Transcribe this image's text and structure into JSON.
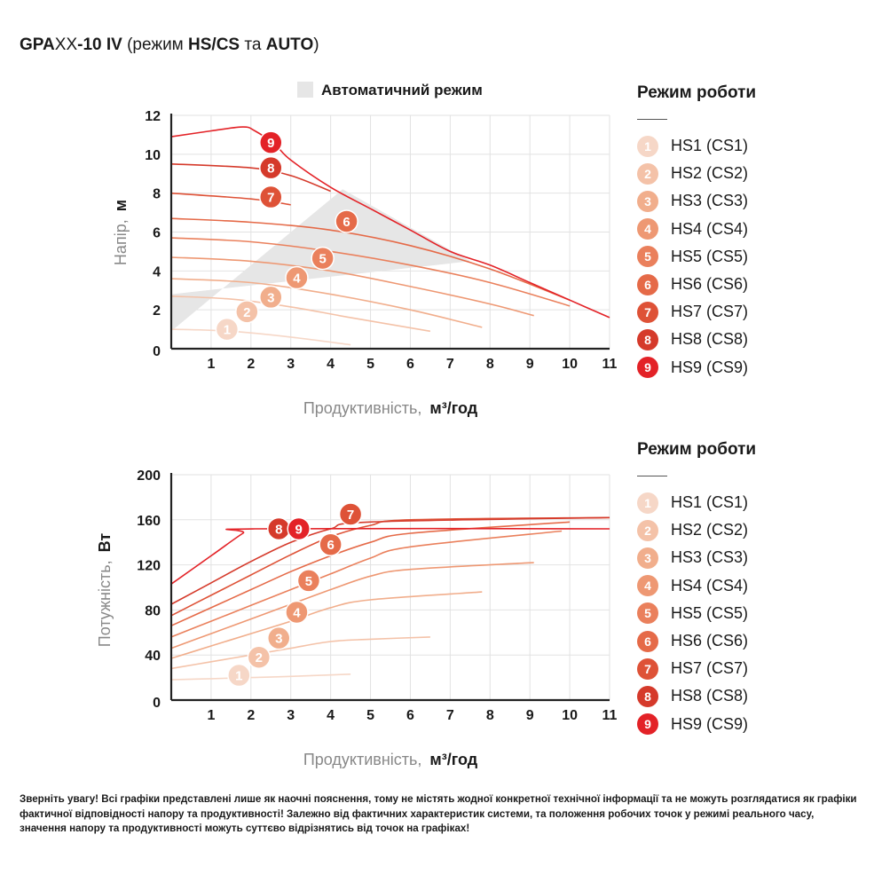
{
  "title": {
    "part1": "GPA",
    "part2": "XX",
    "part3": "-10 IV",
    "part4": " (режим ",
    "part5": "HS/CS",
    "part6": " та ",
    "part7": "AUTO",
    "part8": ")"
  },
  "colors": {
    "levels": [
      "#f6d7c7",
      "#f4c2a8",
      "#f1ae8c",
      "#ee9873",
      "#ea805c",
      "#e56a48",
      "#de5237",
      "#d53a2b",
      "#e32227"
    ],
    "auto_zone": "#e6e6e6",
    "grid": "#e2e2e2",
    "axis": "#222222"
  },
  "legends": [
    {
      "title": "Режим роботи",
      "items": [
        "HS1 (CS1)",
        "HS2 (CS2)",
        "HS3 (CS3)",
        "HS4 (CS4)",
        "HS5 (CS5)",
        "HS6 (CS6)",
        "HS7 (CS7)",
        "HS8 (CS8)",
        "HS9 (CS9)"
      ]
    },
    {
      "title": "Режим роботи",
      "items": [
        "HS1 (CS1)",
        "HS2 (CS2)",
        "HS3 (CS3)",
        "HS4 (CS4)",
        "HS5 (CS5)",
        "HS6 (CS6)",
        "HS7 (CS7)",
        "HS8 (CS8)",
        "HS9 (CS9)"
      ]
    }
  ],
  "chart_data": [
    {
      "type": "line",
      "title": "",
      "xlabel": "Продуктивність,",
      "xlabel_unit": "м³/год",
      "ylabel": "Напір,",
      "ylabel_unit": "м",
      "xlim": [
        0,
        11
      ],
      "ylim": [
        0,
        12
      ],
      "xticks": [
        "1",
        "2",
        "3",
        "4",
        "5",
        "6",
        "7",
        "8",
        "9",
        "10",
        "11"
      ],
      "yticks": [
        "0",
        "2",
        "4",
        "6",
        "8",
        "10",
        "12"
      ],
      "grid": true,
      "auto_zone_label": "Автоматичний режим",
      "auto_zone": [
        [
          0,
          0.9
        ],
        [
          4.3,
          8.2
        ],
        [
          7.5,
          4.5
        ],
        [
          0,
          2.8
        ]
      ],
      "series": [
        {
          "marker": "1",
          "points": [
            [
              0,
              1.0
            ],
            [
              1.5,
              0.9
            ],
            [
              3,
              0.6
            ],
            [
              4.5,
              0.2
            ]
          ],
          "label_at": [
            1.4,
            1.0
          ]
        },
        {
          "marker": "2",
          "points": [
            [
              0,
              2.7
            ],
            [
              1.5,
              2.55
            ],
            [
              3,
              2.15
            ],
            [
              4.5,
              1.6
            ],
            [
              6.5,
              0.9
            ]
          ],
          "label_at": [
            1.9,
            1.9
          ]
        },
        {
          "marker": "3",
          "points": [
            [
              0,
              3.6
            ],
            [
              2,
              3.4
            ],
            [
              4,
              2.8
            ],
            [
              6,
              2.0
            ],
            [
              7.8,
              1.1
            ]
          ],
          "label_at": [
            2.5,
            2.65
          ]
        },
        {
          "marker": "4",
          "points": [
            [
              0,
              4.7
            ],
            [
              2,
              4.5
            ],
            [
              4,
              4.0
            ],
            [
              6,
              3.2
            ],
            [
              8,
              2.3
            ],
            [
              9.1,
              1.7
            ]
          ],
          "label_at": [
            3.15,
            3.65
          ]
        },
        {
          "marker": "5",
          "points": [
            [
              0,
              5.7
            ],
            [
              2,
              5.5
            ],
            [
              4,
              5.0
            ],
            [
              6,
              4.3
            ],
            [
              8,
              3.4
            ],
            [
              10,
              2.2
            ]
          ],
          "label_at": [
            3.8,
            4.65
          ]
        },
        {
          "marker": "6",
          "points": [
            [
              0,
              6.7
            ],
            [
              2,
              6.5
            ],
            [
              4,
              6.1
            ],
            [
              6,
              5.3
            ],
            [
              8,
              4.1
            ],
            [
              10,
              2.5
            ]
          ],
          "label_at": [
            4.4,
            6.55
          ]
        },
        {
          "marker": "7",
          "points": [
            [
              0,
              8.0
            ],
            [
              2,
              7.7
            ],
            [
              3,
              7.4
            ]
          ],
          "label_at": [
            2.5,
            7.8
          ]
        },
        {
          "marker": "8",
          "points": [
            [
              0,
              9.5
            ],
            [
              2,
              9.3
            ],
            [
              3,
              8.9
            ],
            [
              4,
              8.1
            ]
          ],
          "label_at": [
            2.5,
            9.3
          ]
        },
        {
          "marker": "9",
          "points": [
            [
              0,
              10.9
            ],
            [
              1,
              11.2
            ],
            [
              1.8,
              11.4
            ],
            [
              2.1,
              11.2
            ],
            [
              2.6,
              10.5
            ],
            [
              3,
              9.7
            ],
            [
              4,
              8.3
            ],
            [
              5,
              7.2
            ],
            [
              6,
              6.1
            ],
            [
              7,
              5.0
            ],
            [
              8,
              4.3
            ],
            [
              9,
              3.4
            ],
            [
              10,
              2.5
            ],
            [
              11,
              1.6
            ]
          ],
          "label_at": [
            2.5,
            10.6
          ]
        }
      ]
    },
    {
      "type": "line",
      "title": "",
      "xlabel": "Продуктивність,",
      "xlabel_unit": "м³/год",
      "ylabel": "Потужність,",
      "ylabel_unit": "Вт",
      "xlim": [
        0,
        11
      ],
      "ylim": [
        0,
        200
      ],
      "xticks": [
        "1",
        "2",
        "3",
        "4",
        "5",
        "6",
        "7",
        "8",
        "9",
        "10",
        "11"
      ],
      "yticks": [
        "0",
        "40",
        "80",
        "120",
        "160",
        "200"
      ],
      "grid": true,
      "series": [
        {
          "marker": "1",
          "points": [
            [
              0,
              18
            ],
            [
              1,
              19
            ],
            [
              2,
              20
            ],
            [
              3,
              21
            ],
            [
              4.5,
              23
            ]
          ],
          "label_at": [
            1.7,
            22
          ]
        },
        {
          "marker": "2",
          "points": [
            [
              0,
              28
            ],
            [
              1,
              34
            ],
            [
              2,
              40
            ],
            [
              3,
              46
            ],
            [
              4,
              52
            ],
            [
              5,
              54
            ],
            [
              6.5,
              56
            ]
          ],
          "label_at": [
            2.2,
            38
          ]
        },
        {
          "marker": "3",
          "points": [
            [
              0,
              37
            ],
            [
              1,
              48
            ],
            [
              2,
              59
            ],
            [
              3,
              70
            ],
            [
              4,
              82
            ],
            [
              5,
              89
            ],
            [
              7.8,
              96
            ]
          ],
          "label_at": [
            2.7,
            55
          ]
        },
        {
          "marker": "4",
          "points": [
            [
              0,
              46
            ],
            [
              1,
              59
            ],
            [
              2,
              72
            ],
            [
              3,
              85
            ],
            [
              4,
              98
            ],
            [
              5,
              110
            ],
            [
              6,
              116
            ],
            [
              9.1,
              122
            ]
          ],
          "label_at": [
            3.15,
            78
          ]
        },
        {
          "marker": "5",
          "points": [
            [
              0,
              56
            ],
            [
              1,
              70
            ],
            [
              2,
              84
            ],
            [
              3,
              98
            ],
            [
              4,
              112
            ],
            [
              5,
              126
            ],
            [
              6,
              136
            ],
            [
              9.8,
              150
            ]
          ],
          "label_at": [
            3.45,
            106
          ]
        },
        {
          "marker": "6",
          "points": [
            [
              0,
              66
            ],
            [
              1,
              82
            ],
            [
              2,
              98
            ],
            [
              3,
              114
            ],
            [
              4,
              128
            ],
            [
              5,
              140
            ],
            [
              6,
              148
            ],
            [
              10,
              158
            ]
          ],
          "label_at": [
            4.0,
            138
          ]
        },
        {
          "marker": "7",
          "points": [
            [
              0,
              75
            ],
            [
              1,
              93
            ],
            [
              2,
              111
            ],
            [
              3,
              129
            ],
            [
              4,
              145
            ],
            [
              5,
              155
            ],
            [
              6,
              160
            ],
            [
              11,
              162
            ]
          ],
          "label_at": [
            4.5,
            165
          ]
        },
        {
          "marker": "8",
          "points": [
            [
              0,
              85
            ],
            [
              1,
              104
            ],
            [
              2,
              123
            ],
            [
              3,
              140
            ],
            [
              4,
              152
            ],
            [
              5,
              158
            ],
            [
              11,
              162
            ]
          ],
          "label_at": [
            2.7,
            152
          ]
        },
        {
          "marker": "9",
          "points": [
            [
              0,
              103
            ],
            [
              1,
              128
            ],
            [
              1.8,
              148
            ],
            [
              2.1,
              152
            ],
            [
              11,
              152
            ]
          ],
          "label_at": [
            3.2,
            152
          ]
        }
      ]
    }
  ],
  "note": "Зверніть увагу! Всі графіки представлені лише як наочні пояснення, тому не містять жодної конкретної технічної інформації та не можуть розглядатися як графіки фактичної відповідності напору та продуктивності! Залежно від фактичних характеристик системи, та положення робочих точок у режимі реального часу, значення напору та продуктивності можуть суттєво відрізнятись від точок на графіках!"
}
